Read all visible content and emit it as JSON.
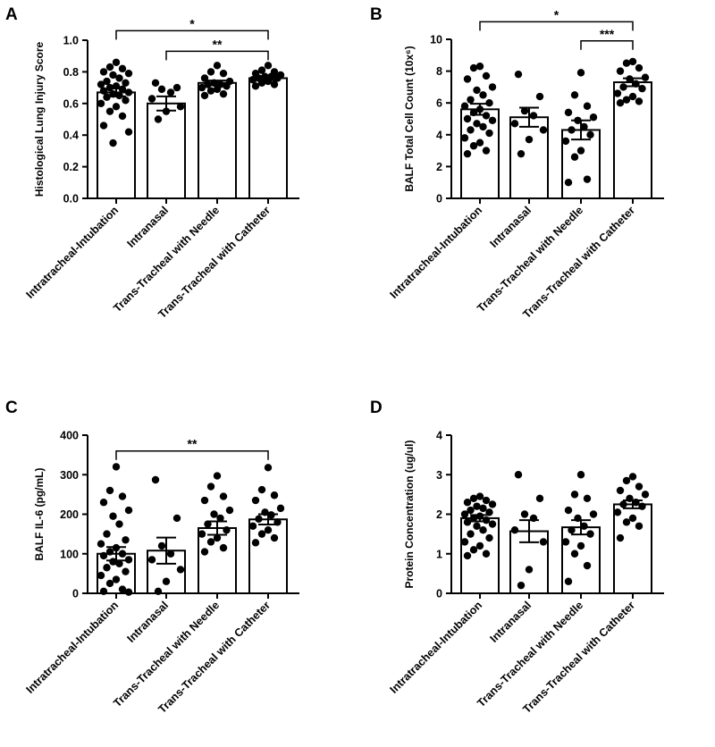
{
  "chart_data": [
    {
      "panel": "A",
      "type": "bar",
      "title": "",
      "xlabel": "",
      "ylabel": "Histological Lung Injury Score",
      "ylim": [
        0,
        1.0
      ],
      "yticks": [
        "0.0",
        "0.2",
        "0.4",
        "0.6",
        "0.8",
        "1.0"
      ],
      "categories": [
        "Intratracheal-Intubation",
        "Intranasal",
        "Trans-Tracheal with Needle",
        "Trans-Tracheal with Catheter"
      ],
      "values": [
        0.67,
        0.6,
        0.73,
        0.76
      ],
      "sem": [
        0.025,
        0.045,
        0.015,
        0.013
      ],
      "points": [
        [
          0.86,
          0.83,
          0.82,
          0.8,
          0.79,
          0.78,
          0.76,
          0.74,
          0.73,
          0.72,
          0.71,
          0.7,
          0.69,
          0.68,
          0.67,
          0.66,
          0.65,
          0.64,
          0.62,
          0.6,
          0.58,
          0.55,
          0.52,
          0.46,
          0.42,
          0.35
        ],
        [
          0.73,
          0.7,
          0.69,
          0.67,
          0.63,
          0.58,
          0.55,
          0.5
        ],
        [
          0.84,
          0.8,
          0.79,
          0.76,
          0.74,
          0.73,
          0.72,
          0.72,
          0.71,
          0.7,
          0.69,
          0.68,
          0.66,
          0.65
        ],
        [
          0.84,
          0.81,
          0.8,
          0.79,
          0.78,
          0.77,
          0.77,
          0.76,
          0.76,
          0.75,
          0.74,
          0.73,
          0.72,
          0.71
        ]
      ],
      "significance": [
        {
          "from": 0,
          "to": 3,
          "label": "*",
          "y": 1.06
        },
        {
          "from": 1,
          "to": 3,
          "label": "**",
          "y": 0.93
        }
      ]
    },
    {
      "panel": "B",
      "type": "bar",
      "title": "",
      "xlabel": "",
      "ylabel": "BALF Total Cell Count (10x⁶)",
      "ylim": [
        0,
        10
      ],
      "yticks": [
        "0",
        "2",
        "4",
        "6",
        "8",
        "10"
      ],
      "categories": [
        "Intratracheal-Intubation",
        "Intranasal",
        "Trans-Tracheal with Needle",
        "Trans-Tracheal with Catheter"
      ],
      "values": [
        5.6,
        5.1,
        4.3,
        7.3
      ],
      "sem": [
        0.35,
        0.6,
        0.6,
        0.25
      ],
      "points": [
        [
          8.3,
          8.2,
          7.7,
          7.5,
          7.0,
          6.8,
          6.5,
          6.2,
          6.0,
          5.8,
          5.6,
          5.4,
          5.2,
          5.0,
          4.9,
          4.7,
          4.5,
          4.3,
          4.1,
          3.8,
          3.5,
          3.3,
          3.0,
          2.8
        ],
        [
          7.8,
          6.4,
          5.5,
          5.2,
          4.7,
          4.3,
          3.7,
          2.8
        ],
        [
          7.9,
          6.5,
          5.8,
          5.4,
          5.1,
          4.9,
          4.5,
          4.3,
          4.0,
          3.6,
          3.0,
          2.6,
          1.2,
          1.0
        ],
        [
          8.6,
          8.5,
          8.2,
          8.0,
          7.6,
          7.5,
          7.2,
          7.0,
          6.9,
          6.6,
          6.4,
          6.2,
          6.1,
          6.0
        ]
      ],
      "significance": [
        {
          "from": 0,
          "to": 3,
          "label": "*",
          "y": 11.1
        },
        {
          "from": 2,
          "to": 3,
          "label": "***",
          "y": 9.9
        }
      ]
    },
    {
      "panel": "C",
      "type": "bar",
      "title": "",
      "xlabel": "",
      "ylabel": "BALF IL-6 (pg/mL)",
      "ylim": [
        0,
        400
      ],
      "yticks": [
        "0",
        "100",
        "200",
        "300",
        "400"
      ],
      "categories": [
        "Intratracheal-Intubation",
        "Intranasal",
        "Trans-Tracheal with Needle",
        "Trans-Tracheal with Catheter"
      ],
      "values": [
        100,
        108,
        165,
        187
      ],
      "sem": [
        17,
        33,
        17,
        13
      ],
      "points": [
        [
          320,
          260,
          245,
          230,
          210,
          195,
          175,
          150,
          135,
          125,
          115,
          105,
          100,
          95,
          85,
          80,
          75,
          65,
          55,
          45,
          35,
          25,
          10,
          5,
          3
        ],
        [
          287,
          190,
          120,
          100,
          85,
          60,
          30,
          5
        ],
        [
          297,
          270,
          245,
          235,
          210,
          200,
          190,
          175,
          160,
          150,
          140,
          130,
          115,
          105
        ],
        [
          318,
          262,
          248,
          235,
          215,
          205,
          198,
          188,
          180,
          170,
          160,
          150,
          140,
          128
        ]
      ],
      "significance": [
        {
          "from": 0,
          "to": 3,
          "label": "**",
          "y": 360
        }
      ]
    },
    {
      "panel": "D",
      "type": "bar",
      "title": "",
      "xlabel": "",
      "ylabel": "Protein Concentration (ug/ul)",
      "ylim": [
        0,
        4
      ],
      "yticks": [
        "0",
        "1",
        "2",
        "3",
        "4"
      ],
      "categories": [
        "Intratracheal-Intubation",
        "Intranasal",
        "Trans-Tracheal with Needle",
        "Trans-Tracheal with Catheter"
      ],
      "values": [
        1.9,
        1.57,
        1.67,
        2.25
      ],
      "sem": [
        0.08,
        0.28,
        0.18,
        0.1
      ],
      "points": [
        [
          2.45,
          2.4,
          2.35,
          2.3,
          2.25,
          2.2,
          2.15,
          2.1,
          2.05,
          2.0,
          1.95,
          1.9,
          1.85,
          1.8,
          1.75,
          1.7,
          1.6,
          1.5,
          1.4,
          1.3,
          1.2,
          1.1,
          1.0,
          0.95
        ],
        [
          3.0,
          2.4,
          2.0,
          1.9,
          1.6,
          1.3,
          0.6,
          0.2
        ],
        [
          3.0,
          2.5,
          2.4,
          2.1,
          2.0,
          1.9,
          1.7,
          1.6,
          1.5,
          1.3,
          1.2,
          1.0,
          0.7,
          0.3
        ],
        [
          2.95,
          2.85,
          2.7,
          2.6,
          2.5,
          2.4,
          2.3,
          2.25,
          2.2,
          2.05,
          1.9,
          1.8,
          1.7,
          1.4
        ]
      ],
      "significance": []
    }
  ]
}
